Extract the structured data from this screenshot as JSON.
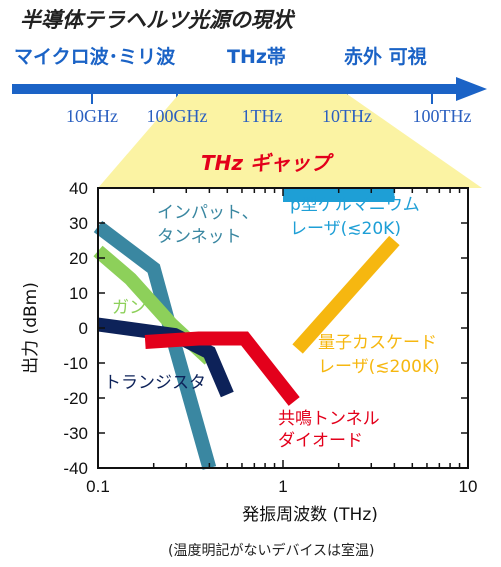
{
  "header": {
    "title": "半導体テラヘルツ光源の現状",
    "bands": [
      {
        "label": "マイクロ波･ミリ波"
      },
      {
        "label": "THz帯"
      },
      {
        "label": "赤外 可視"
      }
    ],
    "frequency_ticks": [
      "10GHz",
      "100GHz",
      "1THz",
      "10THz",
      "100THz"
    ],
    "gap_label": "THz ギャップ"
  },
  "footnote": "(温度明記がないデバイスは室温)",
  "colors": {
    "band_bar": "#1b63c6",
    "gap_fill": "#fbf3a3",
    "impatt": "#3a87a1",
    "gunn": "#8dd05a",
    "transistor": "#0d2259",
    "rtd": "#e3001b",
    "qcl": "#f6b710",
    "pge": "#1e9fd6"
  },
  "chart_data": {
    "type": "line",
    "x_scale": "log",
    "xlim": [
      0.1,
      10
    ],
    "ylim": [
      -40,
      40
    ],
    "xlabel": "発振周波数 (THz)",
    "ylabel": "出力 (dBm)",
    "x_ticks": [
      "0.1",
      "1",
      "10"
    ],
    "y_ticks": [
      "40",
      "30",
      "20",
      "10",
      "0",
      "-10",
      "-20",
      "-30",
      "-40"
    ],
    "series": [
      {
        "name": "インパット、タンネット",
        "label_lines": [
          "インパット、",
          "タンネット"
        ],
        "color": "#3a87a1",
        "points": [
          [
            0.1,
            29
          ],
          [
            0.2,
            17
          ],
          [
            0.26,
            -5
          ],
          [
            0.4,
            -40
          ]
        ]
      },
      {
        "name": "ガン",
        "label_lines": [
          "ガン"
        ],
        "color": "#8dd05a",
        "points": [
          [
            0.1,
            22
          ],
          [
            0.15,
            14
          ],
          [
            0.25,
            1
          ],
          [
            0.4,
            -9
          ]
        ]
      },
      {
        "name": "トランジスタ",
        "label_lines": [
          "トランジスタ"
        ],
        "color": "#0d2259",
        "points": [
          [
            0.1,
            1
          ],
          [
            0.26,
            -2
          ],
          [
            0.4,
            -7
          ],
          [
            0.5,
            -19
          ]
        ]
      },
      {
        "name": "共鳴トンネルダイオード",
        "label_lines": [
          "共鳴トンネル",
          "ダイオード"
        ],
        "color": "#e3001b",
        "points": [
          [
            0.18,
            -4
          ],
          [
            0.35,
            -3
          ],
          [
            0.62,
            -3
          ],
          [
            1.15,
            -21
          ]
        ]
      },
      {
        "name": "量子カスケードレーザ(≲200K)",
        "label_lines": [
          "量子カスケード",
          "レーザ(≲200K)"
        ],
        "color": "#f6b710",
        "points": [
          [
            1.2,
            -6
          ],
          [
            4.0,
            25
          ]
        ]
      },
      {
        "name": "p型ゲルマニウムレーザ(≲20K)",
        "label_lines": [
          "p型ゲルマニウム",
          "レーザ(≲20K)"
        ],
        "color": "#1e9fd6",
        "points": [
          [
            1.0,
            38
          ],
          [
            4.0,
            38
          ]
        ]
      }
    ]
  }
}
